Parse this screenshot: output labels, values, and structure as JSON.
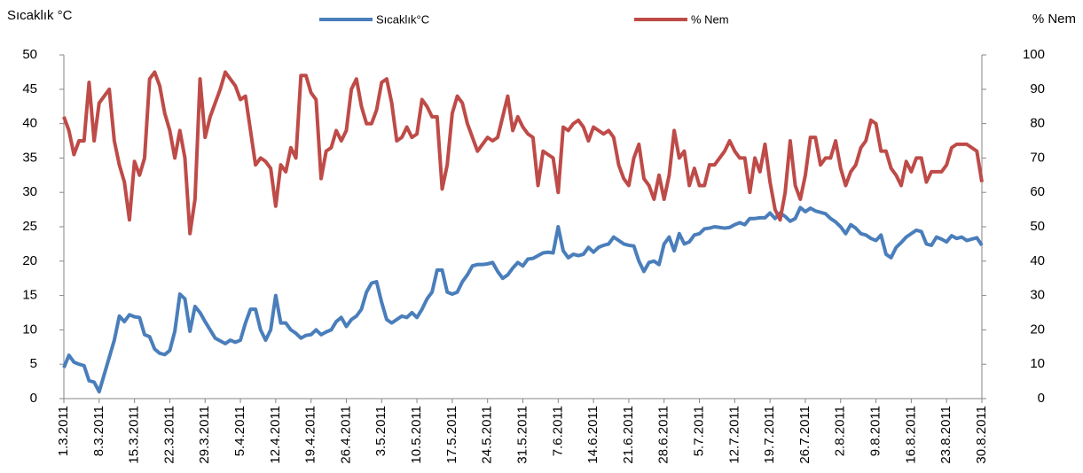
{
  "chart_data": {
    "type": "line",
    "y_label": "Sıcaklık °C",
    "y2_label": "% Nem",
    "categories": [
      "1.3.2011",
      null,
      null,
      null,
      null,
      null,
      null,
      "8.3.2011",
      null,
      null,
      null,
      null,
      null,
      null,
      "15.3.2011",
      null,
      null,
      null,
      null,
      null,
      null,
      "22.3.2011",
      null,
      null,
      null,
      null,
      null,
      null,
      "29.3.2011",
      null,
      null,
      null,
      null,
      null,
      null,
      "5.4.2011",
      null,
      null,
      null,
      null,
      null,
      null,
      "12.4.2011",
      null,
      null,
      null,
      null,
      null,
      null,
      "19.4.2011",
      null,
      null,
      null,
      null,
      null,
      null,
      "26.4.2011",
      null,
      null,
      null,
      null,
      null,
      null,
      "3.5.2011",
      null,
      null,
      null,
      null,
      null,
      null,
      "10.5.2011",
      null,
      null,
      null,
      null,
      null,
      null,
      "17.5.2011",
      null,
      null,
      null,
      null,
      null,
      null,
      "24.5.2011",
      null,
      null,
      null,
      null,
      null,
      null,
      "31.5.2011",
      null,
      null,
      null,
      null,
      null,
      null,
      "7.6.2011",
      null,
      null,
      null,
      null,
      null,
      null,
      "14.6.2011",
      null,
      null,
      null,
      null,
      null,
      null,
      "21.6.2011",
      null,
      null,
      null,
      null,
      null,
      null,
      "28.6.2011",
      null,
      null,
      null,
      null,
      null,
      null,
      "5.7.2011",
      null,
      null,
      null,
      null,
      null,
      null,
      "12.7.2011",
      null,
      null,
      null,
      null,
      null,
      null,
      "19.7.2011",
      null,
      null,
      null,
      null,
      null,
      null,
      "26.7.2011",
      null,
      null,
      null,
      null,
      null,
      null,
      "2.8.2011",
      null,
      null,
      null,
      null,
      null,
      null,
      "9.8.2011",
      null,
      null,
      null,
      null,
      null,
      null,
      "16.8.2011",
      null,
      null,
      null,
      null,
      null,
      null,
      "23.8.2011",
      null,
      null,
      null,
      null,
      null,
      null,
      "30.8.2011"
    ],
    "series": [
      {
        "name": "Sıcaklık°C",
        "color": "#4a7ebb",
        "values": [
          4.5,
          6.3,
          5.3,
          5.0,
          4.8,
          2.6,
          2.4,
          1.0,
          3.5,
          6,
          8.5,
          12,
          11.2,
          12.2,
          11.9,
          11.8,
          9.3,
          9,
          7.2,
          6.6,
          6.4,
          7,
          9.8,
          15.2,
          14.5,
          9.8,
          13.4,
          12.5,
          11.2,
          10,
          8.8,
          8.4,
          8,
          8.5,
          8.2,
          8.5,
          11,
          13,
          13,
          10,
          8.5,
          10,
          15,
          11,
          11,
          10,
          9.5,
          8.8,
          9.2,
          9.3,
          10,
          9.3,
          9.7,
          10,
          11.2,
          11.8,
          10.5,
          11.5,
          12,
          13,
          15.5,
          16.8,
          17,
          14,
          11.5,
          11,
          11.5,
          12,
          11.8,
          12.5,
          11.8,
          13,
          14.5,
          15.5,
          18.7,
          18.7,
          15.5,
          15.2,
          15.5,
          17,
          18,
          19.3,
          19.5,
          19.5,
          19.6,
          19.8,
          18.5,
          17.5,
          18,
          19,
          19.8,
          19.3,
          20.3,
          20.4,
          20.8,
          21.2,
          21.3,
          21.2,
          25,
          21.5,
          20.5,
          21,
          20.8,
          21,
          22,
          21.3,
          22,
          22.3,
          22.5,
          23.5,
          23,
          22.5,
          22.3,
          22.2,
          20,
          18.5,
          19.8,
          20,
          19.5,
          22.5,
          23.5,
          21.5,
          24,
          22.5,
          22.8,
          23.8,
          24,
          24.7,
          24.8,
          25,
          24.9,
          24.8,
          24.9,
          25.3,
          25.6,
          25.3,
          26.2,
          26.2,
          26.3,
          26.3,
          27,
          26.2,
          27,
          26.5,
          25.8,
          26.2,
          27.8,
          27.2,
          27.7,
          27.3,
          27.1,
          26.9,
          26.2,
          25.7,
          25,
          24,
          25.3,
          24.8,
          24,
          23.8,
          23.3,
          23,
          23.8,
          21,
          20.5,
          22,
          22.7,
          23.5,
          24,
          24.5,
          24.3,
          22.5,
          22.3,
          23.5,
          23.2,
          22.8,
          23.7,
          23.3,
          23.5,
          23,
          23.2,
          23.4,
          22.3
        ]
      },
      {
        "name": "% Nem",
        "color": "#be4b48",
        "axis": "y2",
        "values": [
          82,
          78,
          71,
          75,
          75,
          92,
          75,
          86,
          88,
          90,
          75,
          68,
          63,
          52,
          69,
          65,
          70,
          93,
          95,
          91,
          83,
          78,
          70,
          78,
          70,
          48,
          58,
          93,
          76,
          82,
          86,
          90,
          95,
          93,
          91,
          87,
          88,
          78,
          68,
          70,
          69,
          67,
          56,
          68,
          66,
          73,
          70,
          94,
          94,
          89,
          87,
          64,
          72,
          73,
          78,
          75,
          78,
          90,
          93,
          85,
          80,
          80,
          84,
          92,
          93,
          86,
          75,
          76,
          79,
          76,
          77,
          87,
          85,
          82,
          82,
          61,
          68,
          83,
          88,
          86,
          80,
          76,
          72,
          74,
          76,
          75,
          76,
          82,
          88,
          78,
          82,
          79,
          77,
          76,
          62,
          72,
          71,
          70,
          60,
          79,
          78,
          80,
          81,
          79,
          75,
          79,
          78,
          77,
          78,
          76,
          68,
          64,
          62,
          70,
          74,
          64,
          62,
          58,
          65,
          58,
          65,
          78,
          70,
          72,
          62,
          67,
          62,
          62,
          68,
          68,
          70,
          72,
          75,
          72,
          70,
          70,
          60,
          70,
          66,
          74,
          63,
          55,
          52,
          60,
          75,
          62,
          58,
          65,
          76,
          76,
          68,
          70,
          70,
          75,
          67,
          62,
          66,
          68,
          73,
          75,
          81,
          80,
          72,
          72,
          67,
          65,
          62,
          69,
          66,
          70,
          70,
          63,
          66,
          66,
          66,
          68,
          73,
          74,
          74,
          74,
          73,
          72,
          63
        ]
      }
    ],
    "ylim": [
      0,
      50
    ],
    "yticks": [
      0,
      5,
      10,
      15,
      20,
      25,
      30,
      35,
      40,
      45,
      50
    ],
    "y2lim": [
      0,
      100
    ],
    "y2ticks": [
      0,
      10,
      20,
      30,
      40,
      50,
      60,
      70,
      80,
      90,
      100
    ],
    "grid": false,
    "legend": "top"
  }
}
